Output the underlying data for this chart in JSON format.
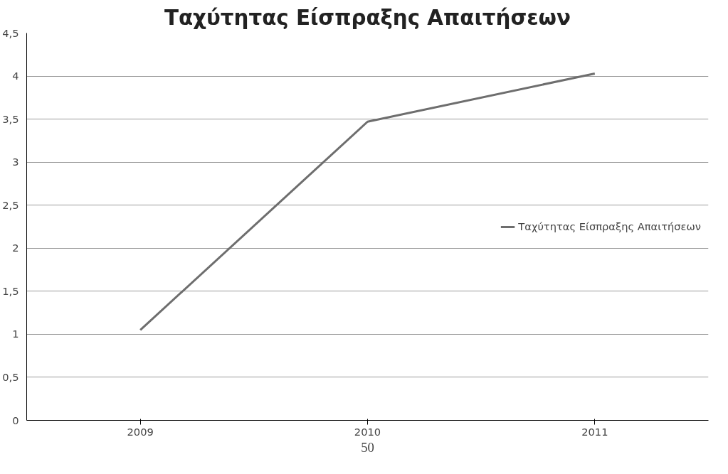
{
  "chart_data": {
    "type": "line",
    "title": "Ταχύτητας Είσπραξης Απαιτήσεων",
    "categories": [
      "2009",
      "2010",
      "2011"
    ],
    "series": [
      {
        "name": "Ταχύτητας Είσπραξης Απαιτήσεων",
        "color": "#6e6e6e",
        "values": [
          1.05,
          3.47,
          4.03
        ]
      }
    ],
    "ylim": [
      0,
      4.5
    ],
    "yticks": [
      0,
      {
        "value": 0.5,
        "label": "0,5"
      },
      1,
      {
        "value": 1.5,
        "label": "1,5"
      },
      2,
      {
        "value": 2.5,
        "label": "2,5"
      },
      3,
      {
        "value": 3.5,
        "label": "3,5"
      },
      4,
      {
        "value": 4.5,
        "label": "4,5"
      }
    ],
    "grid": "y",
    "legend": "right",
    "marker": "none",
    "line_style": "solid",
    "annotations": [
      "50"
    ]
  }
}
